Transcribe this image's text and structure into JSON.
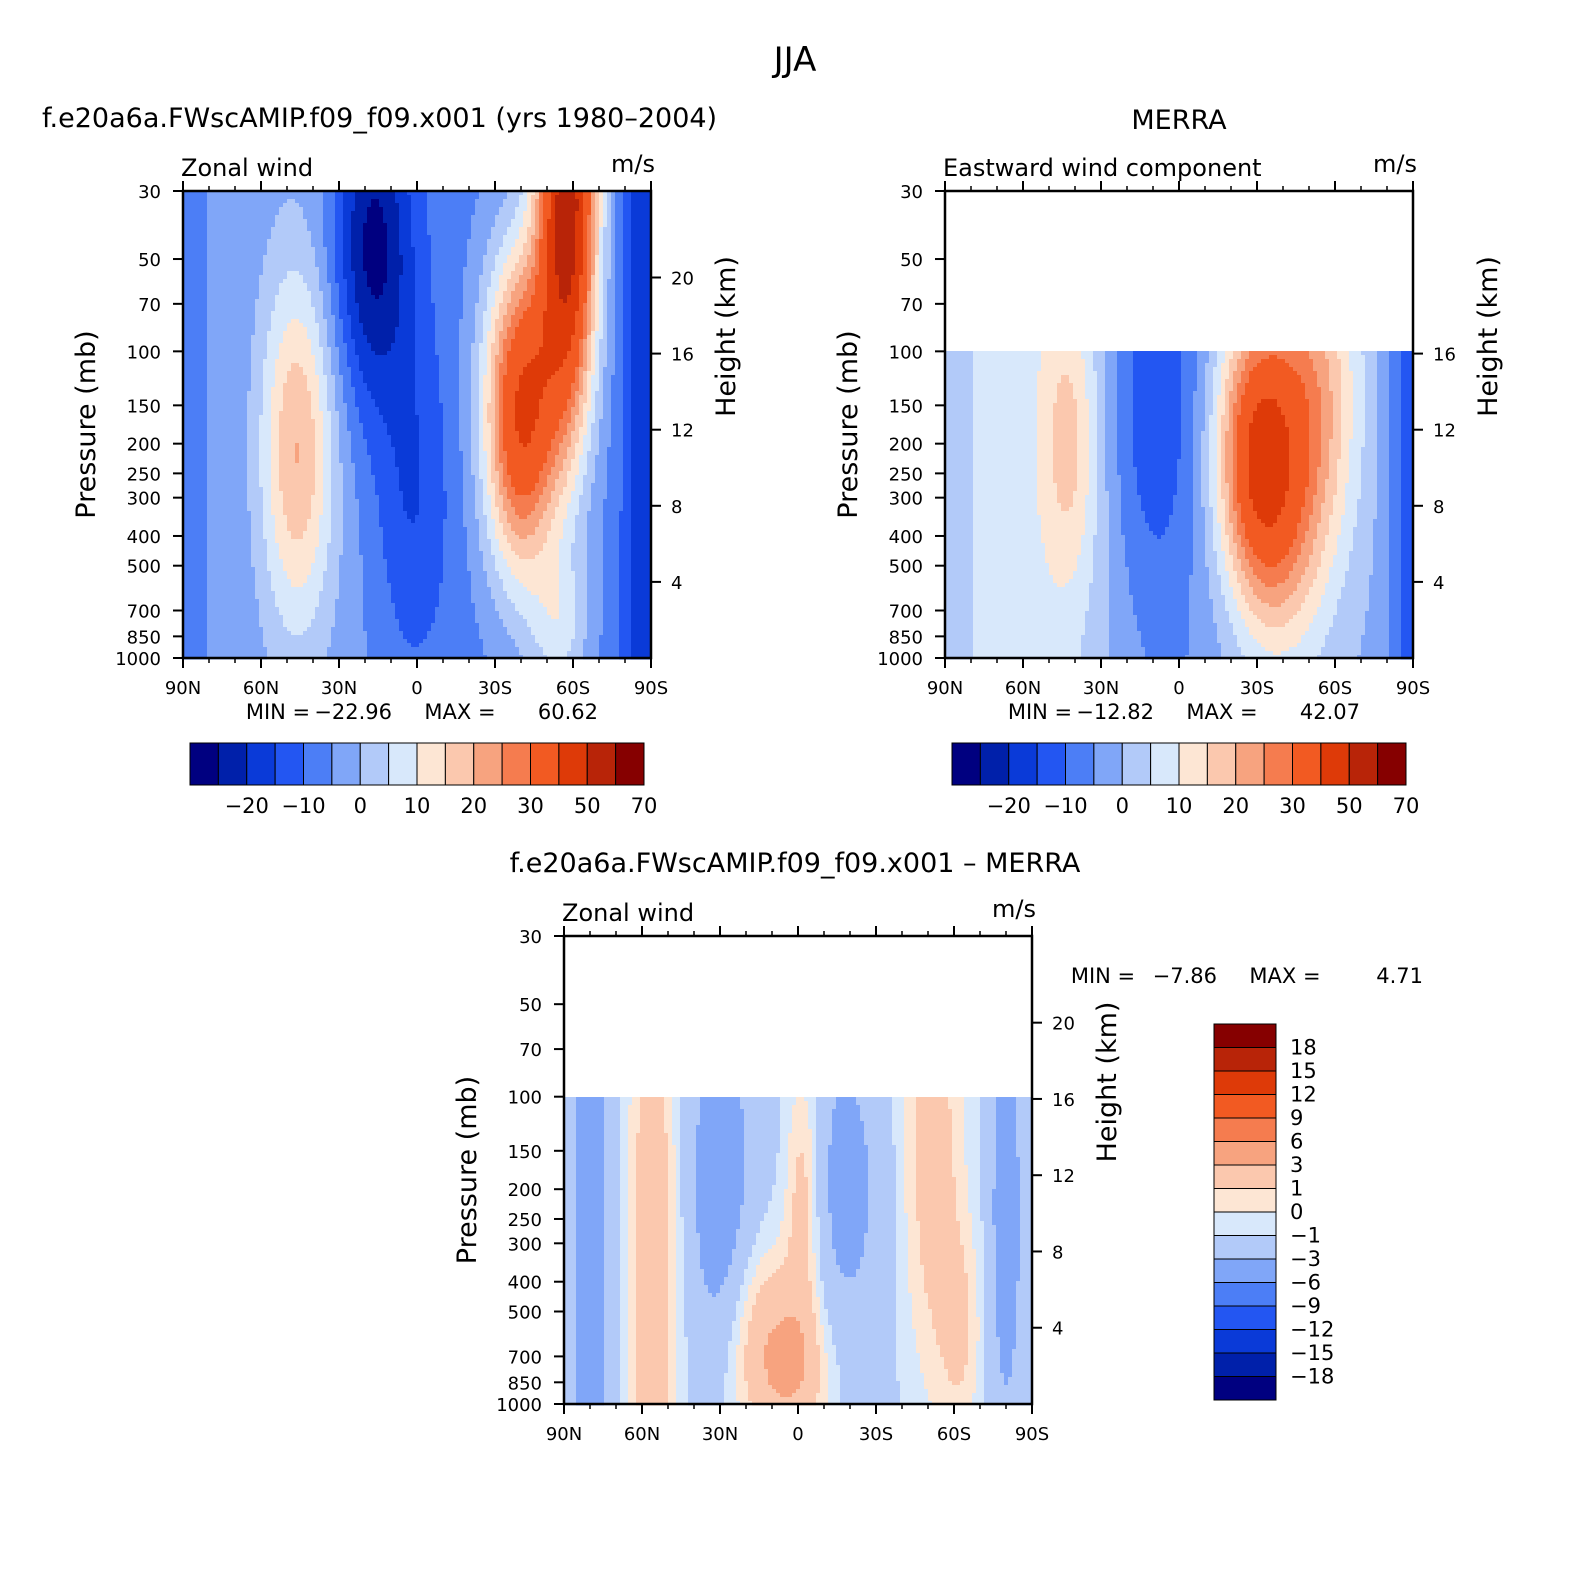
{
  "figure": {
    "title": "JJA",
    "panels": [
      {
        "id": "model",
        "header": "f.e20a6a.FWscAMIP.f09_f09.x001 (yrs 1980–2004)",
        "left_string": "Zonal wind",
        "right_string": "m/s",
        "ylabel": "Pressure (mb)",
        "right_ylabel": "Height (km)",
        "min_max": {
          "min_label": "MIN =",
          "min": "−22.96",
          "max_label": "MAX =",
          "max": "60.62"
        }
      },
      {
        "id": "merra",
        "header": "MERRA",
        "left_string": "Eastward wind component",
        "right_string": "m/s",
        "ylabel": "Pressure (mb)",
        "right_ylabel": "Height (km)",
        "min_max": {
          "min_label": "MIN =",
          "min": "−12.82",
          "max_label": "MAX =",
          "max": "42.07"
        }
      },
      {
        "id": "diff",
        "header": "f.e20a6a.FWscAMIP.f09_f09.x001 – MERRA",
        "left_string": "Zonal wind",
        "right_string": "m/s",
        "ylabel": "Pressure (mb)",
        "right_ylabel": "Height (km)",
        "min_max": {
          "min_label": "MIN =",
          "min": "−7.86",
          "max_label": "MAX =",
          "max": "4.71"
        }
      }
    ]
  },
  "chart_data": [
    {
      "type": "heatmap",
      "title": "f.e20a6a.FWscAMIP.f09_f09.x001 (yrs 1980–2004)",
      "subtitle": "Zonal wind",
      "units": "m/s",
      "xlabel": "",
      "ylabel": "Pressure (mb)",
      "y2label": "Height (km)",
      "x_ticks": [
        "90N",
        "60N",
        "30N",
        "0",
        "30S",
        "60S",
        "90S"
      ],
      "y_ticks": [
        30,
        50,
        70,
        100,
        150,
        200,
        250,
        300,
        400,
        500,
        700,
        850,
        1000
      ],
      "y2_ticks": [
        4,
        8,
        12,
        16,
        20
      ],
      "ylim": [
        1000,
        30
      ],
      "y_scale": "log",
      "data_top_mb": 30,
      "levels": [
        -25,
        -20,
        -15,
        -10,
        -5,
        0,
        5,
        10,
        15,
        20,
        25,
        30,
        40,
        50,
        60,
        70,
        80
      ],
      "colorbar_labels": [
        "−20",
        "−10",
        "0",
        "10",
        "20",
        "30",
        "50",
        "70"
      ],
      "colorbar_orientation": "horizontal",
      "min": -22.96,
      "max": 60.62
    },
    {
      "type": "heatmap",
      "title": "MERRA",
      "subtitle": "Eastward wind component",
      "units": "m/s",
      "xlabel": "",
      "ylabel": "Pressure (mb)",
      "y2label": "Height (km)",
      "x_ticks": [
        "90N",
        "60N",
        "30N",
        "0",
        "30S",
        "60S",
        "90S"
      ],
      "y_ticks": [
        30,
        50,
        70,
        100,
        150,
        200,
        250,
        300,
        400,
        500,
        700,
        850,
        1000
      ],
      "y2_ticks": [
        4,
        8,
        12,
        16
      ],
      "ylim": [
        1000,
        30
      ],
      "y_scale": "log",
      "data_top_mb": 100,
      "levels": [
        -25,
        -20,
        -15,
        -10,
        -5,
        0,
        5,
        10,
        15,
        20,
        25,
        30,
        40,
        50,
        60,
        70,
        80
      ],
      "colorbar_labels": [
        "−20",
        "−10",
        "0",
        "10",
        "20",
        "30",
        "50",
        "70"
      ],
      "colorbar_orientation": "horizontal",
      "min": -12.82,
      "max": 42.07
    },
    {
      "type": "heatmap",
      "title": "f.e20a6a.FWscAMIP.f09_f09.x001 – MERRA",
      "subtitle": "Zonal wind",
      "units": "m/s",
      "xlabel": "",
      "ylabel": "Pressure (mb)",
      "y2label": "Height (km)",
      "x_ticks": [
        "90N",
        "60N",
        "30N",
        "0",
        "30S",
        "60S",
        "90S"
      ],
      "y_ticks": [
        30,
        50,
        70,
        100,
        150,
        200,
        250,
        300,
        400,
        500,
        700,
        850,
        1000
      ],
      "y2_ticks": [
        4,
        8,
        12,
        16,
        20
      ],
      "ylim": [
        1000,
        30
      ],
      "y_scale": "log",
      "data_top_mb": 100,
      "levels": [
        -18,
        -15,
        -12,
        -9,
        -6,
        -3,
        -1,
        0,
        1,
        3,
        6,
        9,
        12,
        15,
        18
      ],
      "colorbar_labels": [
        "18",
        "15",
        "12",
        "9",
        "6",
        "3",
        "1",
        "0",
        "−1",
        "−3",
        "−6",
        "−9",
        "−12",
        "−15",
        "−18"
      ],
      "colorbar_orientation": "vertical",
      "min": -7.86,
      "max": 4.71
    }
  ],
  "colors": {
    "seq16": [
      "#000080",
      "#0020aa",
      "#0a3ad8",
      "#2356f2",
      "#4c7ef6",
      "#80a6f8",
      "#b2caf9",
      "#d8e8fb",
      "#fde6d4",
      "#fbc8ae",
      "#f7a37f",
      "#f57c4f",
      "#f25a22",
      "#de3a08",
      "#b82408",
      "#860000"
    ],
    "diff16": [
      "#000080",
      "#0020aa",
      "#0a3ad8",
      "#2356f2",
      "#4c7ef6",
      "#80a6f8",
      "#b2caf9",
      "#d8e8fb",
      "#fde6d4",
      "#fbc8ae",
      "#f7a37f",
      "#f57c4f",
      "#f25a22",
      "#de3a08",
      "#b82408",
      "#860000"
    ]
  }
}
